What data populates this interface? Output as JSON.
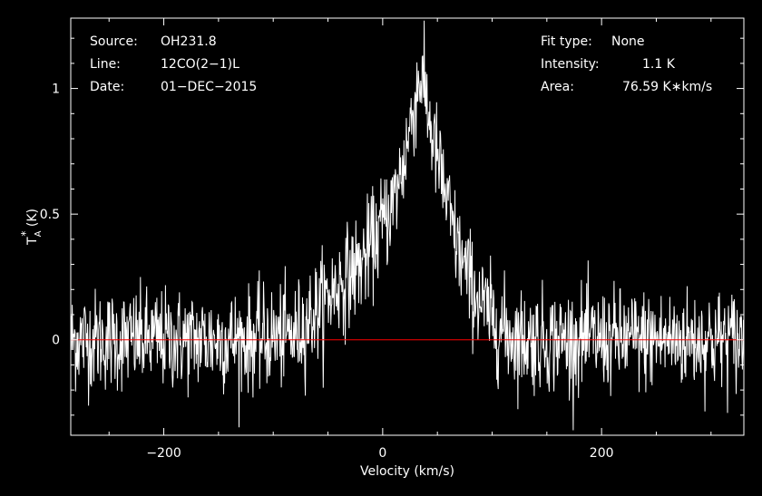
{
  "chart_data": {
    "type": "line",
    "xlabel": "Velocity (km/s)",
    "ylabel_main": "T",
    "ylabel_sub": "A",
    "ylabel_sup": "*",
    "ylabel_unit": " (K)",
    "xlim": [
      -285,
      330
    ],
    "ylim": [
      -0.38,
      1.28
    ],
    "x_ticks": [
      -200,
      0,
      200
    ],
    "x_tick_labels": [
      "−200",
      "0",
      "200"
    ],
    "y_ticks": [
      0,
      0.5,
      1
    ],
    "y_tick_labels": [
      "0",
      "0.5",
      "1"
    ],
    "baseline": 0,
    "series": [
      {
        "description_points": [
          [
            -285,
            0.0
          ],
          [
            -120,
            0.0
          ],
          [
            -80,
            0.02
          ],
          [
            -60,
            0.12
          ],
          [
            -40,
            0.22
          ],
          [
            -20,
            0.3
          ],
          [
            -10,
            0.38
          ],
          [
            0,
            0.46
          ],
          [
            10,
            0.55
          ],
          [
            20,
            0.72
          ],
          [
            28,
            0.92
          ],
          [
            34,
            1.05
          ],
          [
            38,
            1.0
          ],
          [
            45,
            0.82
          ],
          [
            55,
            0.62
          ],
          [
            65,
            0.42
          ],
          [
            75,
            0.28
          ],
          [
            85,
            0.18
          ],
          [
            100,
            0.08
          ],
          [
            115,
            0.02
          ],
          [
            130,
            0.0
          ],
          [
            330,
            0.0
          ]
        ],
        "noise_sigma": 0.1
      }
    ],
    "info_left": [
      {
        "label": "Source:",
        "value": "OH231.8"
      },
      {
        "label": "Line:",
        "value": "12CO(2−1)L"
      },
      {
        "label": "Date:",
        "value": "01−DEC−2015"
      }
    ],
    "info_right": [
      {
        "label": "Fit type:",
        "value": "None"
      },
      {
        "label": "Intensity:",
        "value": "1.1 K"
      },
      {
        "label": "Area:",
        "value": "76.59 K∗km/s"
      }
    ],
    "colors": {
      "background": "#000000",
      "spectrum": "#ffffff",
      "baseline": "#ff0000",
      "axes": "#ffffff"
    }
  }
}
